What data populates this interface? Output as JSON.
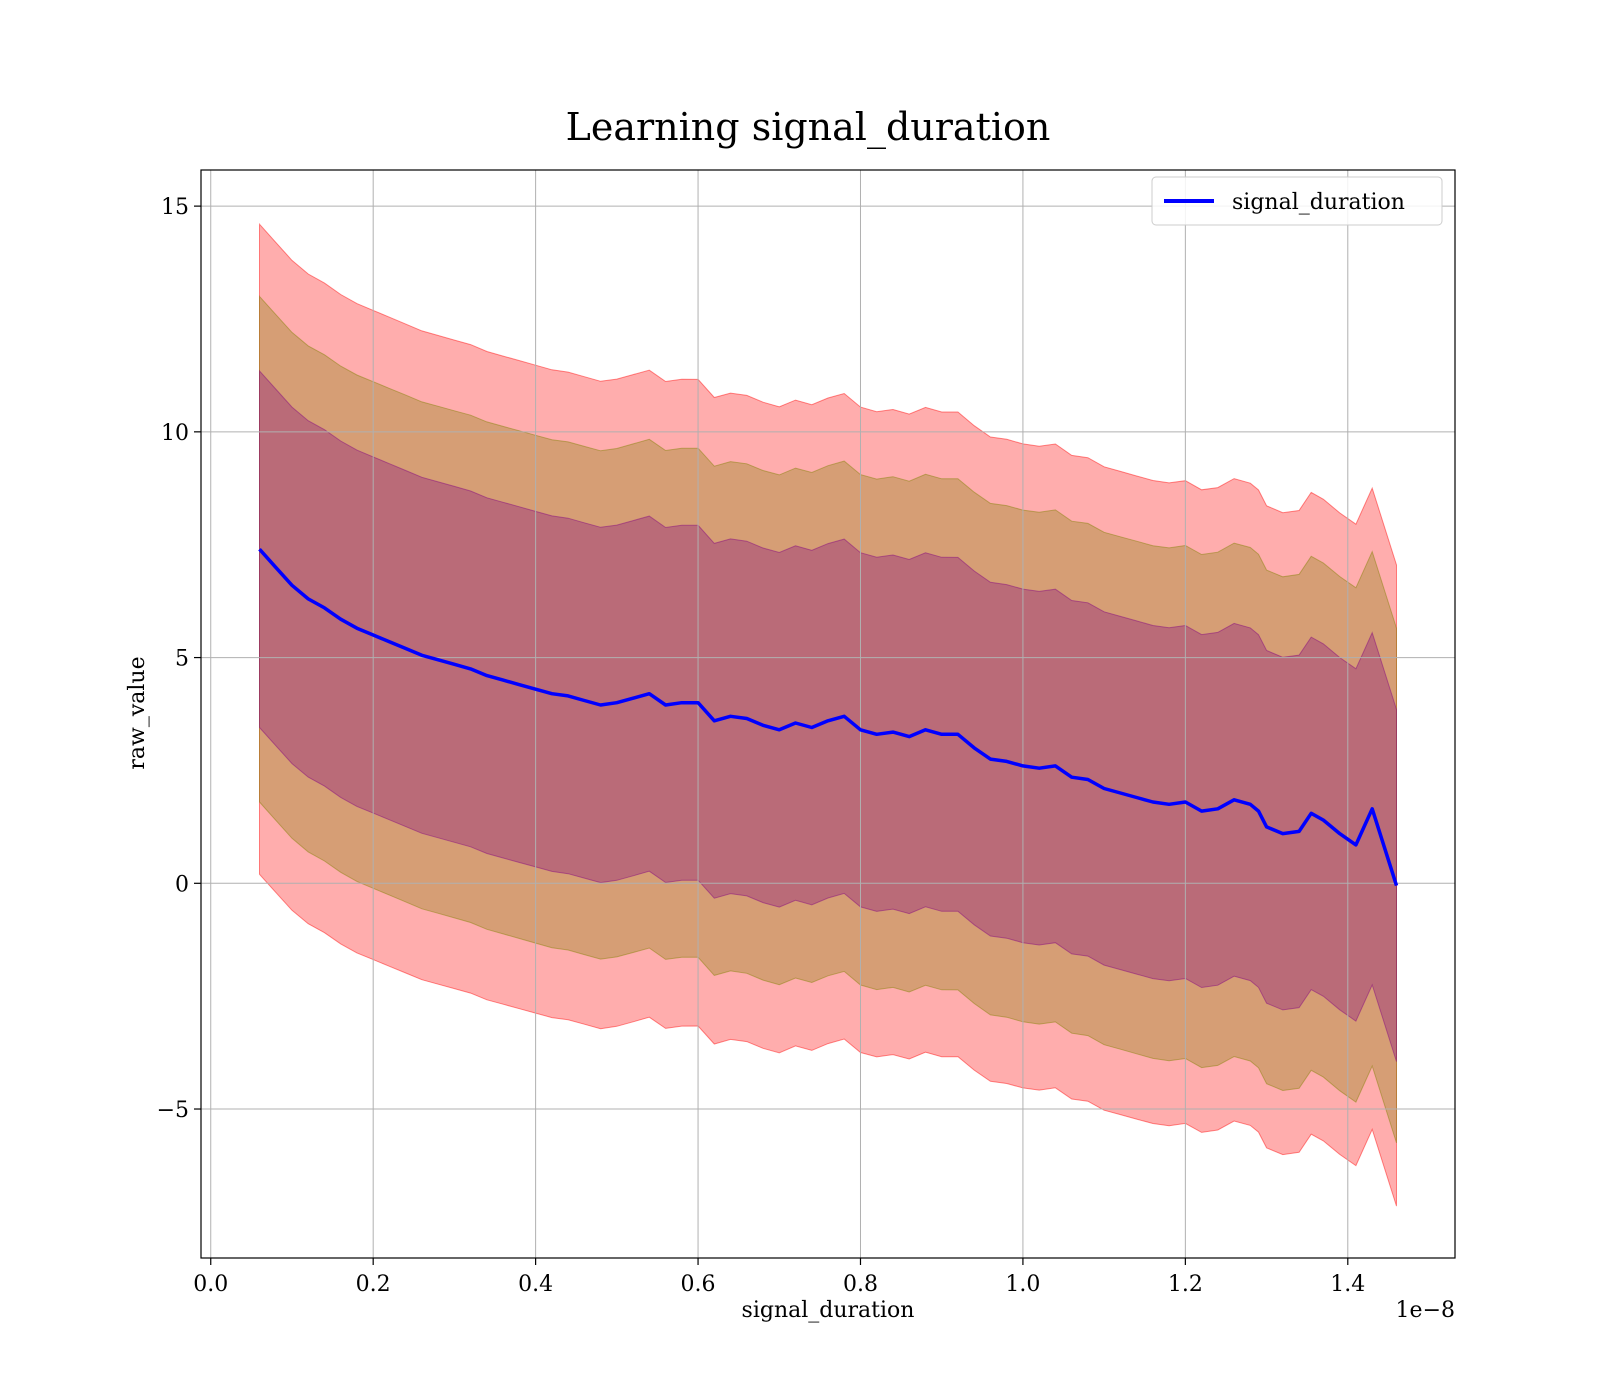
{
  "chart_data": {
    "type": "line",
    "title": "Learning signal_duration",
    "xlabel": "signal_duration",
    "ylabel": "raw_value",
    "x_offset_label": "1e−8",
    "xlim": [
      -0.012,
      1.532
    ],
    "ylim": [
      -8.3,
      15.8
    ],
    "x_ticks": [
      0.0,
      0.2,
      0.4,
      0.6,
      0.8,
      1.0,
      1.2,
      1.4
    ],
    "x_tick_labels": [
      "0.0",
      "0.2",
      "0.4",
      "0.6",
      "0.8",
      "1.0",
      "1.2",
      "1.4"
    ],
    "y_ticks": [
      -5,
      0,
      5,
      10,
      15
    ],
    "y_tick_labels": [
      "−5",
      "0",
      "5",
      "10",
      "15"
    ],
    "grid": true,
    "legend_position": "top-right",
    "colors": {
      "line": "#0000ff",
      "band_outer": "#ff0000",
      "band_middle": "#808000",
      "band_inner": "#800080"
    },
    "band_opacity": 0.32,
    "band_sigma_multipliers": [
      3,
      2,
      1
    ],
    "band_half_width_start": [
      7.2,
      5.6,
      3.95
    ],
    "band_half_width_end": [
      7.1,
      5.7,
      3.9
    ],
    "series": [
      {
        "name": "signal_duration",
        "x": [
          0.06,
          0.08,
          0.1,
          0.12,
          0.14,
          0.16,
          0.18,
          0.2,
          0.22,
          0.24,
          0.26,
          0.28,
          0.3,
          0.32,
          0.34,
          0.36,
          0.38,
          0.4,
          0.42,
          0.44,
          0.46,
          0.48,
          0.5,
          0.52,
          0.54,
          0.56,
          0.58,
          0.6,
          0.62,
          0.64,
          0.66,
          0.68,
          0.7,
          0.72,
          0.74,
          0.76,
          0.78,
          0.8,
          0.82,
          0.84,
          0.86,
          0.88,
          0.9,
          0.92,
          0.94,
          0.96,
          0.98,
          1.0,
          1.02,
          1.04,
          1.06,
          1.08,
          1.1,
          1.12,
          1.14,
          1.16,
          1.18,
          1.2,
          1.22,
          1.24,
          1.26,
          1.28,
          1.29,
          1.3,
          1.32,
          1.34,
          1.355,
          1.37,
          1.39,
          1.41,
          1.43,
          1.46
        ],
        "values": [
          7.4,
          7.0,
          6.6,
          6.3,
          6.1,
          5.85,
          5.65,
          5.5,
          5.35,
          5.2,
          5.05,
          4.95,
          4.85,
          4.75,
          4.6,
          4.5,
          4.4,
          4.3,
          4.2,
          4.15,
          4.05,
          3.95,
          4.0,
          4.1,
          4.2,
          3.95,
          4.0,
          4.0,
          3.6,
          3.7,
          3.65,
          3.5,
          3.4,
          3.55,
          3.45,
          3.6,
          3.7,
          3.4,
          3.3,
          3.35,
          3.25,
          3.4,
          3.3,
          3.3,
          3.0,
          2.75,
          2.7,
          2.6,
          2.55,
          2.6,
          2.35,
          2.3,
          2.1,
          2.0,
          1.9,
          1.8,
          1.75,
          1.8,
          1.6,
          1.65,
          1.85,
          1.75,
          1.6,
          1.25,
          1.1,
          1.15,
          1.55,
          1.4,
          1.1,
          0.85,
          1.65,
          -0.05
        ]
      }
    ]
  }
}
